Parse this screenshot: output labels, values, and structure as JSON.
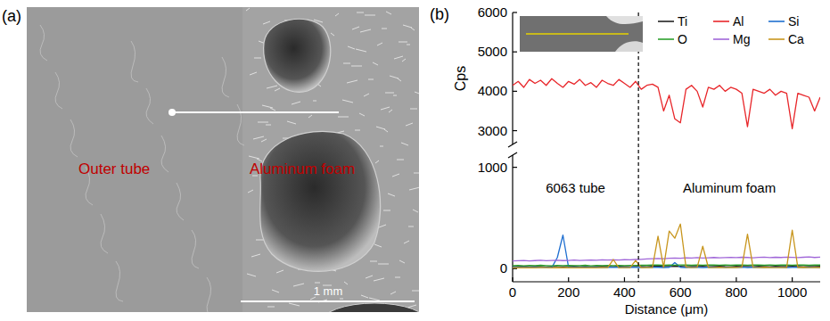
{
  "panel_a": {
    "letter": "(a)",
    "labels": [
      "Outer tube",
      "Aluminum foam"
    ],
    "scale_bar": "1 mm"
  },
  "panel_b": {
    "letter": "(b)"
  },
  "chart_data": [
    {
      "type": "line",
      "ylabel": "Cps",
      "tick_labels": "y",
      "legend": "upper right",
      "x": [
        0,
        20,
        40,
        60,
        80,
        100,
        120,
        140,
        160,
        180,
        200,
        220,
        240,
        260,
        280,
        300,
        320,
        340,
        360,
        380,
        400,
        420,
        440,
        460,
        480,
        500,
        520,
        540,
        560,
        580,
        600,
        620,
        640,
        660,
        680,
        700,
        720,
        740,
        760,
        780,
        800,
        820,
        840,
        860,
        880,
        900,
        920,
        940,
        960,
        980,
        1000,
        1020,
        1040,
        1060,
        1080,
        1100
      ],
      "xlim": [
        0,
        1100
      ],
      "ylim": [
        2650,
        6000
      ],
      "yticks": [
        3000,
        4000,
        5000,
        6000
      ],
      "series": [
        {
          "name": "Al",
          "color": "#e8262a",
          "values": [
            4150,
            4250,
            4100,
            4300,
            4200,
            4280,
            4150,
            4320,
            4200,
            4100,
            4250,
            4180,
            4300,
            4150,
            4220,
            4100,
            4280,
            4200,
            4150,
            4300,
            4200,
            4100,
            4250,
            4050,
            4150,
            4180,
            4100,
            3500,
            3900,
            3300,
            3200,
            4050,
            4150,
            4000,
            3600,
            4100,
            4050,
            4150,
            4000,
            4100,
            4050,
            3950,
            3100,
            4050,
            4000,
            3950,
            4050,
            3900,
            4000,
            3950,
            3050,
            3950,
            3900,
            3850,
            3500,
            3850
          ]
        }
      ]
    },
    {
      "type": "line",
      "xlabel": "Distance (μm)",
      "x": [
        0,
        20,
        40,
        60,
        80,
        100,
        120,
        140,
        160,
        180,
        200,
        220,
        240,
        260,
        280,
        300,
        320,
        340,
        360,
        380,
        400,
        420,
        440,
        460,
        480,
        500,
        520,
        540,
        560,
        580,
        600,
        620,
        640,
        660,
        680,
        700,
        720,
        740,
        760,
        780,
        800,
        820,
        840,
        860,
        880,
        900,
        920,
        940,
        960,
        980,
        1000,
        1020,
        1040,
        1060,
        1080,
        1100
      ],
      "xlim": [
        0,
        1100
      ],
      "xticks": [
        0,
        200,
        400,
        600,
        800,
        1000
      ],
      "ylim": [
        -130,
        1120
      ],
      "yticks": [
        0,
        1000
      ],
      "vlines": [
        450
      ],
      "annotations": [
        "6063 tube",
        "Aluminum foam"
      ],
      "series": [
        {
          "name": "Ti",
          "color": "#222222",
          "values": [
            18,
            20,
            22,
            19,
            21,
            20,
            17,
            23,
            20,
            19,
            21,
            22,
            18,
            20,
            19,
            21,
            23,
            20,
            18,
            22,
            20,
            19,
            21,
            20,
            18,
            22,
            24,
            21,
            20,
            23,
            22,
            19,
            21,
            20,
            22,
            18,
            21,
            23,
            20,
            19,
            22,
            21,
            20,
            18,
            22,
            21,
            19,
            23,
            20,
            21,
            22,
            20,
            18,
            21,
            20,
            22
          ]
        },
        {
          "name": "Si",
          "color": "#1f6fd0",
          "values": [
            12,
            14,
            10,
            13,
            11,
            15,
            12,
            10,
            110,
            330,
            14,
            12,
            13,
            11,
            15,
            12,
            10,
            13,
            12,
            14,
            11,
            13,
            12,
            10,
            14,
            12,
            13,
            11,
            12,
            60,
            13,
            11,
            14,
            12,
            10,
            13,
            12,
            15,
            11,
            13,
            12,
            14,
            10,
            13,
            12,
            11,
            14,
            12,
            13,
            10,
            12,
            14,
            11,
            13,
            12,
            10
          ]
        },
        {
          "name": "O",
          "color": "#2ca02c",
          "values": [
            30,
            32,
            28,
            31,
            29,
            33,
            30,
            28,
            32,
            30,
            31,
            29,
            30,
            33,
            28,
            31,
            30,
            32,
            29,
            31,
            30,
            32,
            31,
            34,
            33,
            35,
            36,
            33,
            35,
            34,
            36,
            35,
            33,
            37,
            34,
            36,
            35,
            34,
            36,
            33,
            35,
            37,
            34,
            36,
            35,
            33,
            36,
            34,
            35,
            37,
            34,
            36,
            35,
            33,
            36,
            35
          ]
        },
        {
          "name": "Mg",
          "color": "#a066d8",
          "values": [
            75,
            78,
            80,
            76,
            79,
            82,
            78,
            80,
            83,
            79,
            81,
            84,
            80,
            82,
            85,
            83,
            86,
            84,
            87,
            85,
            88,
            86,
            90,
            92,
            95,
            98,
            100,
            97,
            102,
            105,
            103,
            106,
            104,
            108,
            105,
            107,
            110,
            106,
            109,
            111,
            108,
            112,
            110,
            107,
            111,
            113,
            109,
            112,
            110,
            114,
            111,
            108,
            112,
            115,
            110,
            113
          ]
        },
        {
          "name": "Ca",
          "color": "#c8961e",
          "values": [
            8,
            10,
            7,
            9,
            8,
            11,
            9,
            7,
            10,
            8,
            9,
            8,
            10,
            7,
            9,
            8,
            11,
            9,
            90,
            8,
            10,
            9,
            80,
            8,
            11,
            9,
            320,
            12,
            370,
            300,
            440,
            15,
            10,
            12,
            220,
            11,
            9,
            13,
            10,
            12,
            11,
            14,
            340,
            12,
            10,
            13,
            11,
            9,
            12,
            10,
            380,
            11,
            13,
            10,
            12,
            11
          ]
        }
      ]
    }
  ]
}
